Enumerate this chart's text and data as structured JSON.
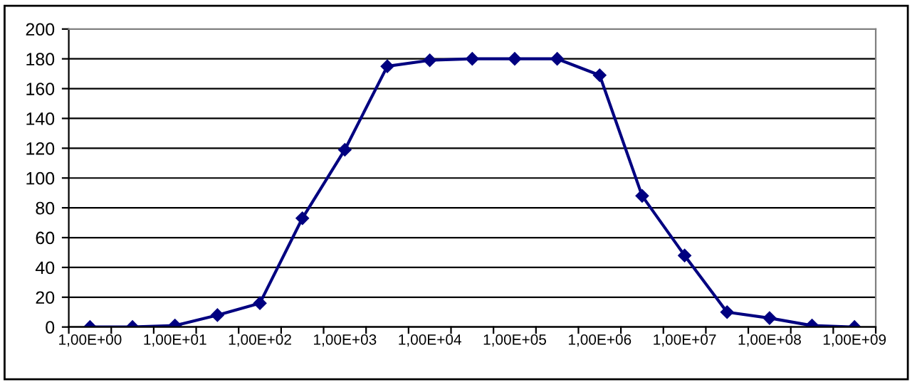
{
  "chart_data": {
    "type": "line",
    "categories": [
      "1,00E+00",
      null,
      "1,00E+01",
      null,
      "1,00E+02",
      null,
      "1,00E+03",
      null,
      "1,00E+04",
      null,
      "1,00E+05",
      null,
      "1,00E+06",
      null,
      "1,00E+07",
      null,
      "1,00E+08",
      null,
      "1,00E+09"
    ],
    "series": [
      {
        "color": "#000080",
        "values": [
          0,
          0,
          1,
          8,
          16,
          73,
          119,
          175,
          179,
          180,
          180,
          180,
          169,
          88,
          48,
          10,
          6,
          1,
          0
        ]
      }
    ],
    "ylim": [
      0,
      200
    ],
    "yticks": [
      0,
      20,
      40,
      60,
      80,
      100,
      120,
      140,
      160,
      180,
      200
    ],
    "grid": "y",
    "marker": "diamond",
    "line_style": "solid"
  }
}
